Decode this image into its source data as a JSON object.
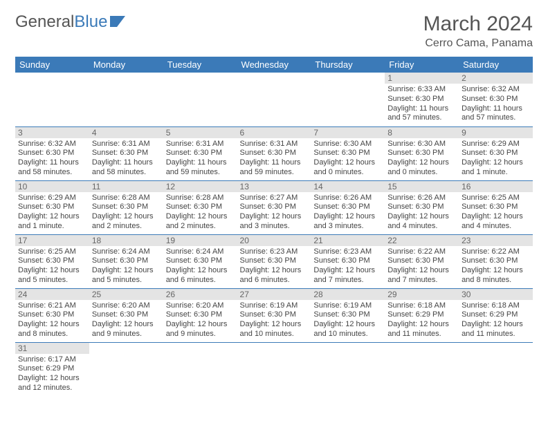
{
  "logo": {
    "part1": "General",
    "part2": "Blue"
  },
  "title": "March 2024",
  "location": "Cerro Cama, Panama",
  "colors": {
    "header_bg": "#3b7ab8",
    "header_fg": "#ffffff",
    "daynum_bg": "#e4e4e4",
    "border": "#3b7ab8",
    "text": "#444444",
    "title_text": "#555555"
  },
  "day_headers": [
    "Sunday",
    "Monday",
    "Tuesday",
    "Wednesday",
    "Thursday",
    "Friday",
    "Saturday"
  ],
  "weeks": [
    [
      {
        "n": "",
        "sr": "",
        "ss": "",
        "dl": ""
      },
      {
        "n": "",
        "sr": "",
        "ss": "",
        "dl": ""
      },
      {
        "n": "",
        "sr": "",
        "ss": "",
        "dl": ""
      },
      {
        "n": "",
        "sr": "",
        "ss": "",
        "dl": ""
      },
      {
        "n": "",
        "sr": "",
        "ss": "",
        "dl": ""
      },
      {
        "n": "1",
        "sr": "Sunrise: 6:33 AM",
        "ss": "Sunset: 6:30 PM",
        "dl": "Daylight: 11 hours and 57 minutes."
      },
      {
        "n": "2",
        "sr": "Sunrise: 6:32 AM",
        "ss": "Sunset: 6:30 PM",
        "dl": "Daylight: 11 hours and 57 minutes."
      }
    ],
    [
      {
        "n": "3",
        "sr": "Sunrise: 6:32 AM",
        "ss": "Sunset: 6:30 PM",
        "dl": "Daylight: 11 hours and 58 minutes."
      },
      {
        "n": "4",
        "sr": "Sunrise: 6:31 AM",
        "ss": "Sunset: 6:30 PM",
        "dl": "Daylight: 11 hours and 58 minutes."
      },
      {
        "n": "5",
        "sr": "Sunrise: 6:31 AM",
        "ss": "Sunset: 6:30 PM",
        "dl": "Daylight: 11 hours and 59 minutes."
      },
      {
        "n": "6",
        "sr": "Sunrise: 6:31 AM",
        "ss": "Sunset: 6:30 PM",
        "dl": "Daylight: 11 hours and 59 minutes."
      },
      {
        "n": "7",
        "sr": "Sunrise: 6:30 AM",
        "ss": "Sunset: 6:30 PM",
        "dl": "Daylight: 12 hours and 0 minutes."
      },
      {
        "n": "8",
        "sr": "Sunrise: 6:30 AM",
        "ss": "Sunset: 6:30 PM",
        "dl": "Daylight: 12 hours and 0 minutes."
      },
      {
        "n": "9",
        "sr": "Sunrise: 6:29 AM",
        "ss": "Sunset: 6:30 PM",
        "dl": "Daylight: 12 hours and 1 minute."
      }
    ],
    [
      {
        "n": "10",
        "sr": "Sunrise: 6:29 AM",
        "ss": "Sunset: 6:30 PM",
        "dl": "Daylight: 12 hours and 1 minute."
      },
      {
        "n": "11",
        "sr": "Sunrise: 6:28 AM",
        "ss": "Sunset: 6:30 PM",
        "dl": "Daylight: 12 hours and 2 minutes."
      },
      {
        "n": "12",
        "sr": "Sunrise: 6:28 AM",
        "ss": "Sunset: 6:30 PM",
        "dl": "Daylight: 12 hours and 2 minutes."
      },
      {
        "n": "13",
        "sr": "Sunrise: 6:27 AM",
        "ss": "Sunset: 6:30 PM",
        "dl": "Daylight: 12 hours and 3 minutes."
      },
      {
        "n": "14",
        "sr": "Sunrise: 6:26 AM",
        "ss": "Sunset: 6:30 PM",
        "dl": "Daylight: 12 hours and 3 minutes."
      },
      {
        "n": "15",
        "sr": "Sunrise: 6:26 AM",
        "ss": "Sunset: 6:30 PM",
        "dl": "Daylight: 12 hours and 4 minutes."
      },
      {
        "n": "16",
        "sr": "Sunrise: 6:25 AM",
        "ss": "Sunset: 6:30 PM",
        "dl": "Daylight: 12 hours and 4 minutes."
      }
    ],
    [
      {
        "n": "17",
        "sr": "Sunrise: 6:25 AM",
        "ss": "Sunset: 6:30 PM",
        "dl": "Daylight: 12 hours and 5 minutes."
      },
      {
        "n": "18",
        "sr": "Sunrise: 6:24 AM",
        "ss": "Sunset: 6:30 PM",
        "dl": "Daylight: 12 hours and 5 minutes."
      },
      {
        "n": "19",
        "sr": "Sunrise: 6:24 AM",
        "ss": "Sunset: 6:30 PM",
        "dl": "Daylight: 12 hours and 6 minutes."
      },
      {
        "n": "20",
        "sr": "Sunrise: 6:23 AM",
        "ss": "Sunset: 6:30 PM",
        "dl": "Daylight: 12 hours and 6 minutes."
      },
      {
        "n": "21",
        "sr": "Sunrise: 6:23 AM",
        "ss": "Sunset: 6:30 PM",
        "dl": "Daylight: 12 hours and 7 minutes."
      },
      {
        "n": "22",
        "sr": "Sunrise: 6:22 AM",
        "ss": "Sunset: 6:30 PM",
        "dl": "Daylight: 12 hours and 7 minutes."
      },
      {
        "n": "23",
        "sr": "Sunrise: 6:22 AM",
        "ss": "Sunset: 6:30 PM",
        "dl": "Daylight: 12 hours and 8 minutes."
      }
    ],
    [
      {
        "n": "24",
        "sr": "Sunrise: 6:21 AM",
        "ss": "Sunset: 6:30 PM",
        "dl": "Daylight: 12 hours and 8 minutes."
      },
      {
        "n": "25",
        "sr": "Sunrise: 6:20 AM",
        "ss": "Sunset: 6:30 PM",
        "dl": "Daylight: 12 hours and 9 minutes."
      },
      {
        "n": "26",
        "sr": "Sunrise: 6:20 AM",
        "ss": "Sunset: 6:30 PM",
        "dl": "Daylight: 12 hours and 9 minutes."
      },
      {
        "n": "27",
        "sr": "Sunrise: 6:19 AM",
        "ss": "Sunset: 6:30 PM",
        "dl": "Daylight: 12 hours and 10 minutes."
      },
      {
        "n": "28",
        "sr": "Sunrise: 6:19 AM",
        "ss": "Sunset: 6:30 PM",
        "dl": "Daylight: 12 hours and 10 minutes."
      },
      {
        "n": "29",
        "sr": "Sunrise: 6:18 AM",
        "ss": "Sunset: 6:29 PM",
        "dl": "Daylight: 12 hours and 11 minutes."
      },
      {
        "n": "30",
        "sr": "Sunrise: 6:18 AM",
        "ss": "Sunset: 6:29 PM",
        "dl": "Daylight: 12 hours and 11 minutes."
      }
    ],
    [
      {
        "n": "31",
        "sr": "Sunrise: 6:17 AM",
        "ss": "Sunset: 6:29 PM",
        "dl": "Daylight: 12 hours and 12 minutes."
      },
      {
        "n": "",
        "sr": "",
        "ss": "",
        "dl": ""
      },
      {
        "n": "",
        "sr": "",
        "ss": "",
        "dl": ""
      },
      {
        "n": "",
        "sr": "",
        "ss": "",
        "dl": ""
      },
      {
        "n": "",
        "sr": "",
        "ss": "",
        "dl": ""
      },
      {
        "n": "",
        "sr": "",
        "ss": "",
        "dl": ""
      },
      {
        "n": "",
        "sr": "",
        "ss": "",
        "dl": ""
      }
    ]
  ]
}
